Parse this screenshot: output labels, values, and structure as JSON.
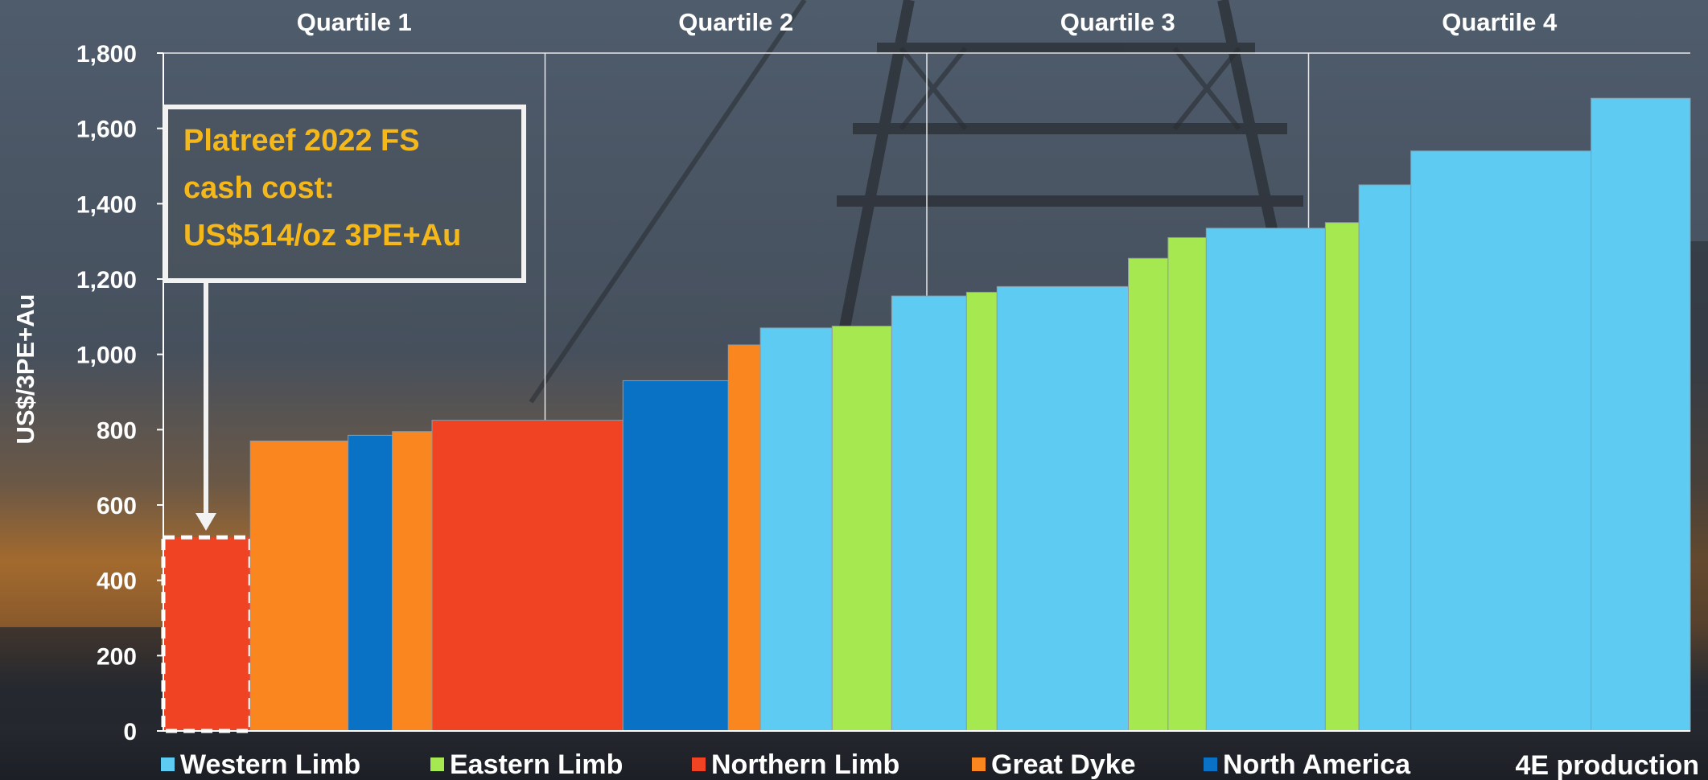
{
  "colors": {
    "Western Limb": "#5ecbf2",
    "Eastern Limb": "#a6e84f",
    "Northern Limb": "#ef4323",
    "Great Dyke": "#f9861e",
    "North America": "#0a72c4",
    "callout_text": "#f5b81b"
  },
  "chart_data": {
    "type": "bar",
    "title": "",
    "ylabel": "US$/3PE+Au",
    "xlabel": "4E production",
    "ylim": [
      0,
      1800
    ],
    "yticks": [
      "0",
      "200",
      "400",
      "600",
      "800",
      "1,000",
      "1,200",
      "1,400",
      "1,600",
      "1,800"
    ],
    "x_range": [
      0,
      1000
    ],
    "grid": "vertical at quartile boundaries",
    "legend_position": "bottom",
    "quartiles": [
      {
        "label": "Quartile 1",
        "start": 0,
        "end": 250
      },
      {
        "label": "Quartile 2",
        "start": 250,
        "end": 500
      },
      {
        "label": "Quartile 3",
        "start": 500,
        "end": 750
      },
      {
        "label": "Quartile 4",
        "start": 750,
        "end": 1000
      }
    ],
    "legend": [
      "Western Limb",
      "Eastern Limb",
      "Northern Limb",
      "Great Dyke",
      "North America"
    ],
    "series": [
      {
        "name": "Platreef 2022 FS",
        "group": "Northern Limb",
        "x0": 0,
        "x1": 57,
        "value": 514,
        "highlight": true
      },
      {
        "group": "Great Dyke",
        "x0": 57,
        "x1": 121,
        "value": 770
      },
      {
        "group": "North America",
        "x0": 121,
        "x1": 150,
        "value": 785
      },
      {
        "group": "Great Dyke",
        "x0": 150,
        "x1": 176,
        "value": 795
      },
      {
        "group": "Northern Limb",
        "x0": 176,
        "x1": 301,
        "value": 825
      },
      {
        "group": "North America",
        "x0": 301,
        "x1": 370,
        "value": 930
      },
      {
        "group": "Great Dyke",
        "x0": 370,
        "x1": 391,
        "value": 1025
      },
      {
        "group": "Western Limb",
        "x0": 391,
        "x1": 438,
        "value": 1070
      },
      {
        "group": "Eastern Limb",
        "x0": 438,
        "x1": 477,
        "value": 1075
      },
      {
        "group": "Western Limb",
        "x0": 477,
        "x1": 526,
        "value": 1155
      },
      {
        "group": "Eastern Limb",
        "x0": 526,
        "x1": 546,
        "value": 1165
      },
      {
        "group": "Western Limb",
        "x0": 546,
        "x1": 632,
        "value": 1180
      },
      {
        "group": "Eastern Limb",
        "x0": 632,
        "x1": 658,
        "value": 1255
      },
      {
        "group": "Eastern Limb",
        "x0": 658,
        "x1": 683,
        "value": 1310
      },
      {
        "group": "Western Limb",
        "x0": 683,
        "x1": 761,
        "value": 1335
      },
      {
        "group": "Eastern Limb",
        "x0": 761,
        "x1": 783,
        "value": 1350
      },
      {
        "group": "Western Limb",
        "x0": 783,
        "x1": 817,
        "value": 1450
      },
      {
        "group": "Western Limb",
        "x0": 817,
        "x1": 935,
        "value": 1540
      },
      {
        "group": "Western Limb",
        "x0": 935,
        "x1": 1000,
        "value": 1680
      }
    ]
  },
  "callout": {
    "lines": [
      "Platreef 2022 FS",
      "cash cost:",
      "US$514/oz 3PE+Au"
    ]
  }
}
